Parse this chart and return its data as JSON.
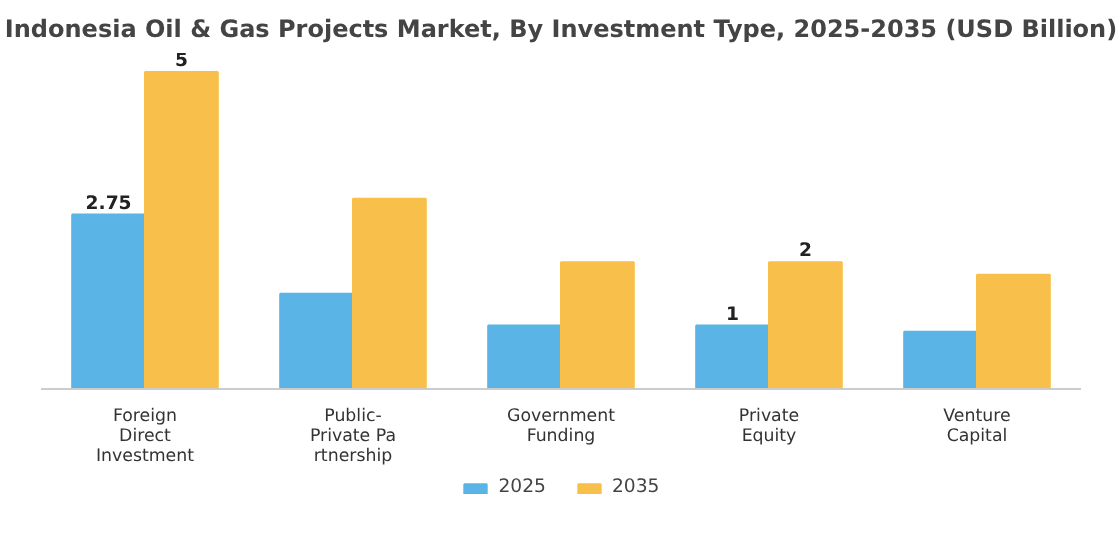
{
  "chart_data": {
    "type": "bar",
    "title": "Indonesia Oil & Gas Projects Market, By Investment Type, 2025-2035 (USD Billion)",
    "categories": [
      "Foreign\nDirect\nInvestment",
      "Public-\nPrivate Pa\nrtnership",
      "Government\nFunding",
      "Private\nEquity",
      "Venture\nCapital"
    ],
    "series": [
      {
        "name": "2025",
        "color": "#5ab4e6",
        "values": [
          2.75,
          1.5,
          1.0,
          1.0,
          0.9
        ],
        "value_labels": [
          "2.75",
          null,
          null,
          "1",
          null
        ]
      },
      {
        "name": "2035",
        "color": "#f8c04a",
        "values": [
          5,
          3.0,
          2.0,
          2,
          1.8
        ],
        "value_labels": [
          "5",
          null,
          null,
          "2",
          null
        ]
      }
    ],
    "legend": "bottom",
    "tick_labels": "x"
  }
}
